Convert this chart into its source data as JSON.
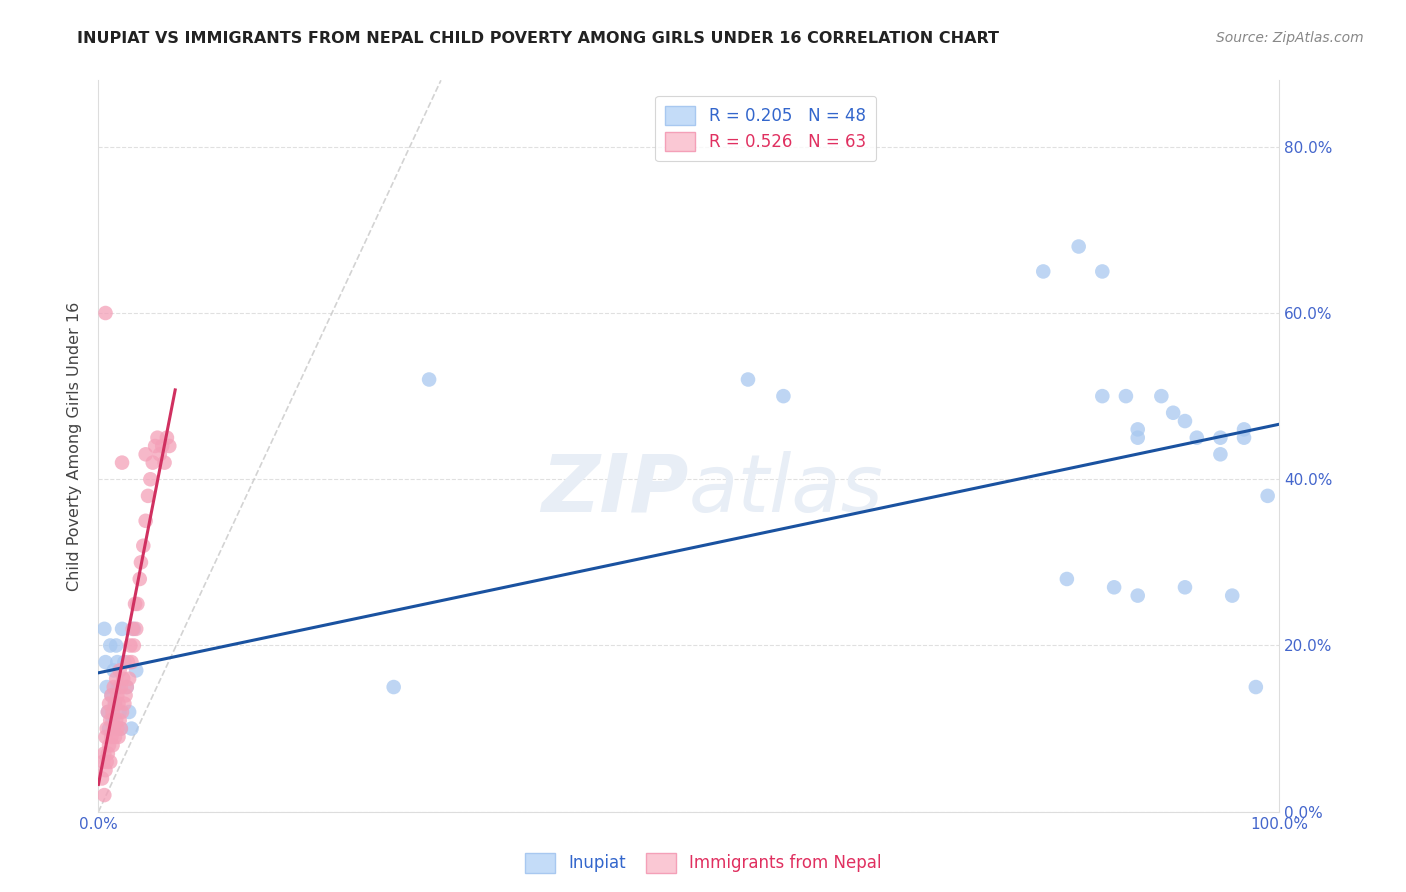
{
  "title": "INUPIAT VS IMMIGRANTS FROM NEPAL CHILD POVERTY AMONG GIRLS UNDER 16 CORRELATION CHART",
  "source": "Source: ZipAtlas.com",
  "ylabel": "Child Poverty Among Girls Under 16",
  "legend1_label": "R = 0.205   N = 48",
  "legend2_label": "R = 0.526   N = 63",
  "blue_scatter_color": "#A8C8F0",
  "pink_scatter_color": "#F4A0B8",
  "blue_line_color": "#1A52A0",
  "pink_line_color": "#D03060",
  "gray_dash_color": "#C8C8C8",
  "tick_color": "#4466CC",
  "watermark_color": "#E8EEF6",
  "inupiat_x": [
    0.005,
    0.006,
    0.007,
    0.008,
    0.009,
    0.01,
    0.011,
    0.012,
    0.013,
    0.014,
    0.015,
    0.016,
    0.017,
    0.018,
    0.019,
    0.02,
    0.022,
    0.024,
    0.026,
    0.028,
    0.03,
    0.032,
    0.25,
    0.28,
    0.55,
    0.58,
    0.8,
    0.83,
    0.85,
    0.87,
    0.88,
    0.9,
    0.91,
    0.93,
    0.95,
    0.97,
    0.99,
    0.85,
    0.88,
    0.92,
    0.95,
    0.97,
    0.82,
    0.86,
    0.88,
    0.92,
    0.96,
    0.98
  ],
  "inupiat_y": [
    0.22,
    0.18,
    0.15,
    0.12,
    0.1,
    0.2,
    0.14,
    0.11,
    0.17,
    0.13,
    0.2,
    0.18,
    0.15,
    0.12,
    0.1,
    0.22,
    0.18,
    0.15,
    0.12,
    0.1,
    0.22,
    0.17,
    0.15,
    0.52,
    0.52,
    0.5,
    0.65,
    0.68,
    0.65,
    0.5,
    0.45,
    0.5,
    0.48,
    0.45,
    0.43,
    0.45,
    0.38,
    0.5,
    0.46,
    0.47,
    0.45,
    0.46,
    0.28,
    0.27,
    0.26,
    0.27,
    0.26,
    0.15
  ],
  "nepal_x": [
    0.003,
    0.004,
    0.005,
    0.005,
    0.006,
    0.006,
    0.007,
    0.007,
    0.008,
    0.008,
    0.009,
    0.009,
    0.01,
    0.01,
    0.011,
    0.011,
    0.012,
    0.012,
    0.013,
    0.013,
    0.014,
    0.014,
    0.015,
    0.015,
    0.016,
    0.016,
    0.017,
    0.017,
    0.018,
    0.018,
    0.019,
    0.019,
    0.02,
    0.021,
    0.022,
    0.023,
    0.024,
    0.025,
    0.026,
    0.027,
    0.028,
    0.029,
    0.03,
    0.031,
    0.032,
    0.033,
    0.035,
    0.036,
    0.038,
    0.04,
    0.042,
    0.044,
    0.046,
    0.048,
    0.05,
    0.052,
    0.054,
    0.056,
    0.058,
    0.06,
    0.006,
    0.02,
    0.04
  ],
  "nepal_y": [
    0.04,
    0.06,
    0.02,
    0.07,
    0.05,
    0.09,
    0.06,
    0.1,
    0.07,
    0.12,
    0.08,
    0.13,
    0.06,
    0.11,
    0.09,
    0.14,
    0.08,
    0.12,
    0.1,
    0.15,
    0.09,
    0.13,
    0.11,
    0.16,
    0.1,
    0.14,
    0.09,
    0.13,
    0.11,
    0.17,
    0.1,
    0.15,
    0.12,
    0.16,
    0.13,
    0.14,
    0.15,
    0.18,
    0.16,
    0.2,
    0.18,
    0.22,
    0.2,
    0.25,
    0.22,
    0.25,
    0.28,
    0.3,
    0.32,
    0.35,
    0.38,
    0.4,
    0.42,
    0.44,
    0.45,
    0.43,
    0.44,
    0.42,
    0.45,
    0.44,
    0.6,
    0.42,
    0.43
  ],
  "xlim": [
    0.0,
    1.0
  ],
  "ylim": [
    0.0,
    0.88
  ],
  "yticks": [
    0.0,
    0.2,
    0.4,
    0.6,
    0.8
  ],
  "ytick_labels": [
    "0.0%",
    "20.0%",
    "40.0%",
    "60.0%",
    "80.0%"
  ],
  "xtick_show_left": "0.0%",
  "xtick_show_right": "100.0%"
}
